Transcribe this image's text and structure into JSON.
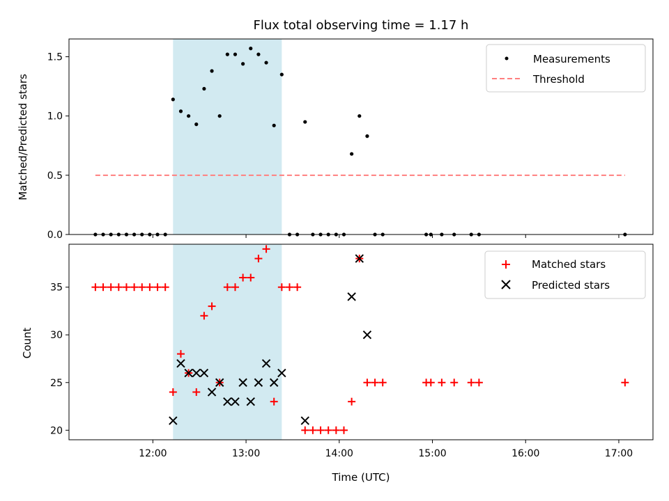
{
  "chart_data": [
    {
      "type": "scatter",
      "title": "Flux total observing time = 1.17 h",
      "xlabel": "",
      "ylabel": "Matched/Predicted stars",
      "xlim": [
        "11:06",
        "17:22"
      ],
      "ylim": [
        0,
        1.65
      ],
      "yticks": [
        "0.0",
        "0.5",
        "1.0",
        "1.5"
      ],
      "grid": false,
      "legend_position": "top-right",
      "highlight_span": {
        "start": "12:13",
        "end": "13:23",
        "color": "#add8e6"
      },
      "series": [
        {
          "name": "Measurements",
          "kind": "points",
          "marker": "dot",
          "color": "#000000",
          "points": [
            [
              "11:23",
              0
            ],
            [
              "11:28",
              0
            ],
            [
              "11:33",
              0
            ],
            [
              "11:38",
              0
            ],
            [
              "11:43",
              0
            ],
            [
              "11:48",
              0
            ],
            [
              "11:53",
              0
            ],
            [
              "11:58",
              0
            ],
            [
              "12:03",
              0
            ],
            [
              "12:08",
              0
            ],
            [
              "12:13",
              1.14
            ],
            [
              "12:18",
              1.04
            ],
            [
              "12:23",
              1.0
            ],
            [
              "12:28",
              0.93
            ],
            [
              "12:33",
              1.23
            ],
            [
              "12:38",
              1.38
            ],
            [
              "12:43",
              1.0
            ],
            [
              "12:48",
              1.52
            ],
            [
              "12:53",
              1.52
            ],
            [
              "12:58",
              1.44
            ],
            [
              "13:03",
              1.57
            ],
            [
              "13:08",
              1.52
            ],
            [
              "13:13",
              1.45
            ],
            [
              "13:18",
              0.92
            ],
            [
              "13:23",
              1.35
            ],
            [
              "13:28",
              0
            ],
            [
              "13:33",
              0
            ],
            [
              "13:38",
              0.95
            ],
            [
              "13:43",
              0
            ],
            [
              "13:48",
              0
            ],
            [
              "13:53",
              0
            ],
            [
              "13:58",
              0
            ],
            [
              "14:03",
              0
            ],
            [
              "14:08",
              0.68
            ],
            [
              "14:13",
              1.0
            ],
            [
              "14:18",
              0.83
            ],
            [
              "14:23",
              0
            ],
            [
              "14:28",
              0
            ],
            [
              "14:56",
              0
            ],
            [
              "14:59",
              0
            ],
            [
              "15:06",
              0
            ],
            [
              "15:14",
              0
            ],
            [
              "15:25",
              0
            ],
            [
              "15:30",
              0
            ],
            [
              "17:04",
              0
            ]
          ]
        },
        {
          "name": "Threshold",
          "kind": "line",
          "dash": true,
          "color": "#ff7f7f",
          "points": [
            [
              "11:23",
              0.5
            ],
            [
              "17:04",
              0.5
            ]
          ]
        }
      ]
    },
    {
      "type": "scatter",
      "title": "",
      "xlabel": "Time (UTC)",
      "ylabel": "Count",
      "xlim": [
        "11:06",
        "17:22"
      ],
      "ylim": [
        19,
        39.5
      ],
      "yticks": [
        "20",
        "25",
        "30",
        "35"
      ],
      "xticks": [
        "12:00",
        "13:00",
        "14:00",
        "15:00",
        "16:00",
        "17:00"
      ],
      "grid": false,
      "legend_position": "top-right",
      "highlight_span": {
        "start": "12:13",
        "end": "13:23",
        "color": "#add8e6"
      },
      "series": [
        {
          "name": "Matched stars",
          "kind": "points",
          "marker": "plus",
          "color": "#ff0000",
          "points": [
            [
              "11:23",
              35
            ],
            [
              "11:28",
              35
            ],
            [
              "11:33",
              35
            ],
            [
              "11:38",
              35
            ],
            [
              "11:43",
              35
            ],
            [
              "11:48",
              35
            ],
            [
              "11:53",
              35
            ],
            [
              "11:58",
              35
            ],
            [
              "12:03",
              35
            ],
            [
              "12:08",
              35
            ],
            [
              "12:13",
              24
            ],
            [
              "12:18",
              28
            ],
            [
              "12:23",
              26
            ],
            [
              "12:28",
              24
            ],
            [
              "12:33",
              32
            ],
            [
              "12:38",
              33
            ],
            [
              "12:43",
              25
            ],
            [
              "12:48",
              35
            ],
            [
              "12:53",
              35
            ],
            [
              "12:58",
              36
            ],
            [
              "13:03",
              36
            ],
            [
              "13:08",
              38
            ],
            [
              "13:13",
              39
            ],
            [
              "13:18",
              23
            ],
            [
              "13:23",
              35
            ],
            [
              "13:28",
              35
            ],
            [
              "13:33",
              35
            ],
            [
              "13:38",
              20
            ],
            [
              "13:43",
              20
            ],
            [
              "13:48",
              20
            ],
            [
              "13:53",
              20
            ],
            [
              "13:58",
              20
            ],
            [
              "14:03",
              20
            ],
            [
              "14:08",
              23
            ],
            [
              "14:13",
              38
            ],
            [
              "14:18",
              25
            ],
            [
              "14:23",
              25
            ],
            [
              "14:28",
              25
            ],
            [
              "14:56",
              25
            ],
            [
              "14:59",
              25
            ],
            [
              "15:06",
              25
            ],
            [
              "15:14",
              25
            ],
            [
              "15:25",
              25
            ],
            [
              "15:30",
              25
            ],
            [
              "17:04",
              25
            ]
          ]
        },
        {
          "name": "Predicted stars",
          "kind": "points",
          "marker": "x",
          "color": "#000000",
          "points": [
            [
              "12:13",
              21
            ],
            [
              "12:18",
              27
            ],
            [
              "12:23",
              26
            ],
            [
              "12:28",
              26
            ],
            [
              "12:33",
              26
            ],
            [
              "12:38",
              24
            ],
            [
              "12:43",
              25
            ],
            [
              "12:48",
              23
            ],
            [
              "12:53",
              23
            ],
            [
              "12:58",
              25
            ],
            [
              "13:03",
              23
            ],
            [
              "13:08",
              25
            ],
            [
              "13:13",
              27
            ],
            [
              "13:18",
              25
            ],
            [
              "13:23",
              26
            ],
            [
              "13:38",
              21
            ],
            [
              "14:08",
              34
            ],
            [
              "14:13",
              38
            ],
            [
              "14:18",
              30
            ]
          ]
        }
      ]
    }
  ]
}
